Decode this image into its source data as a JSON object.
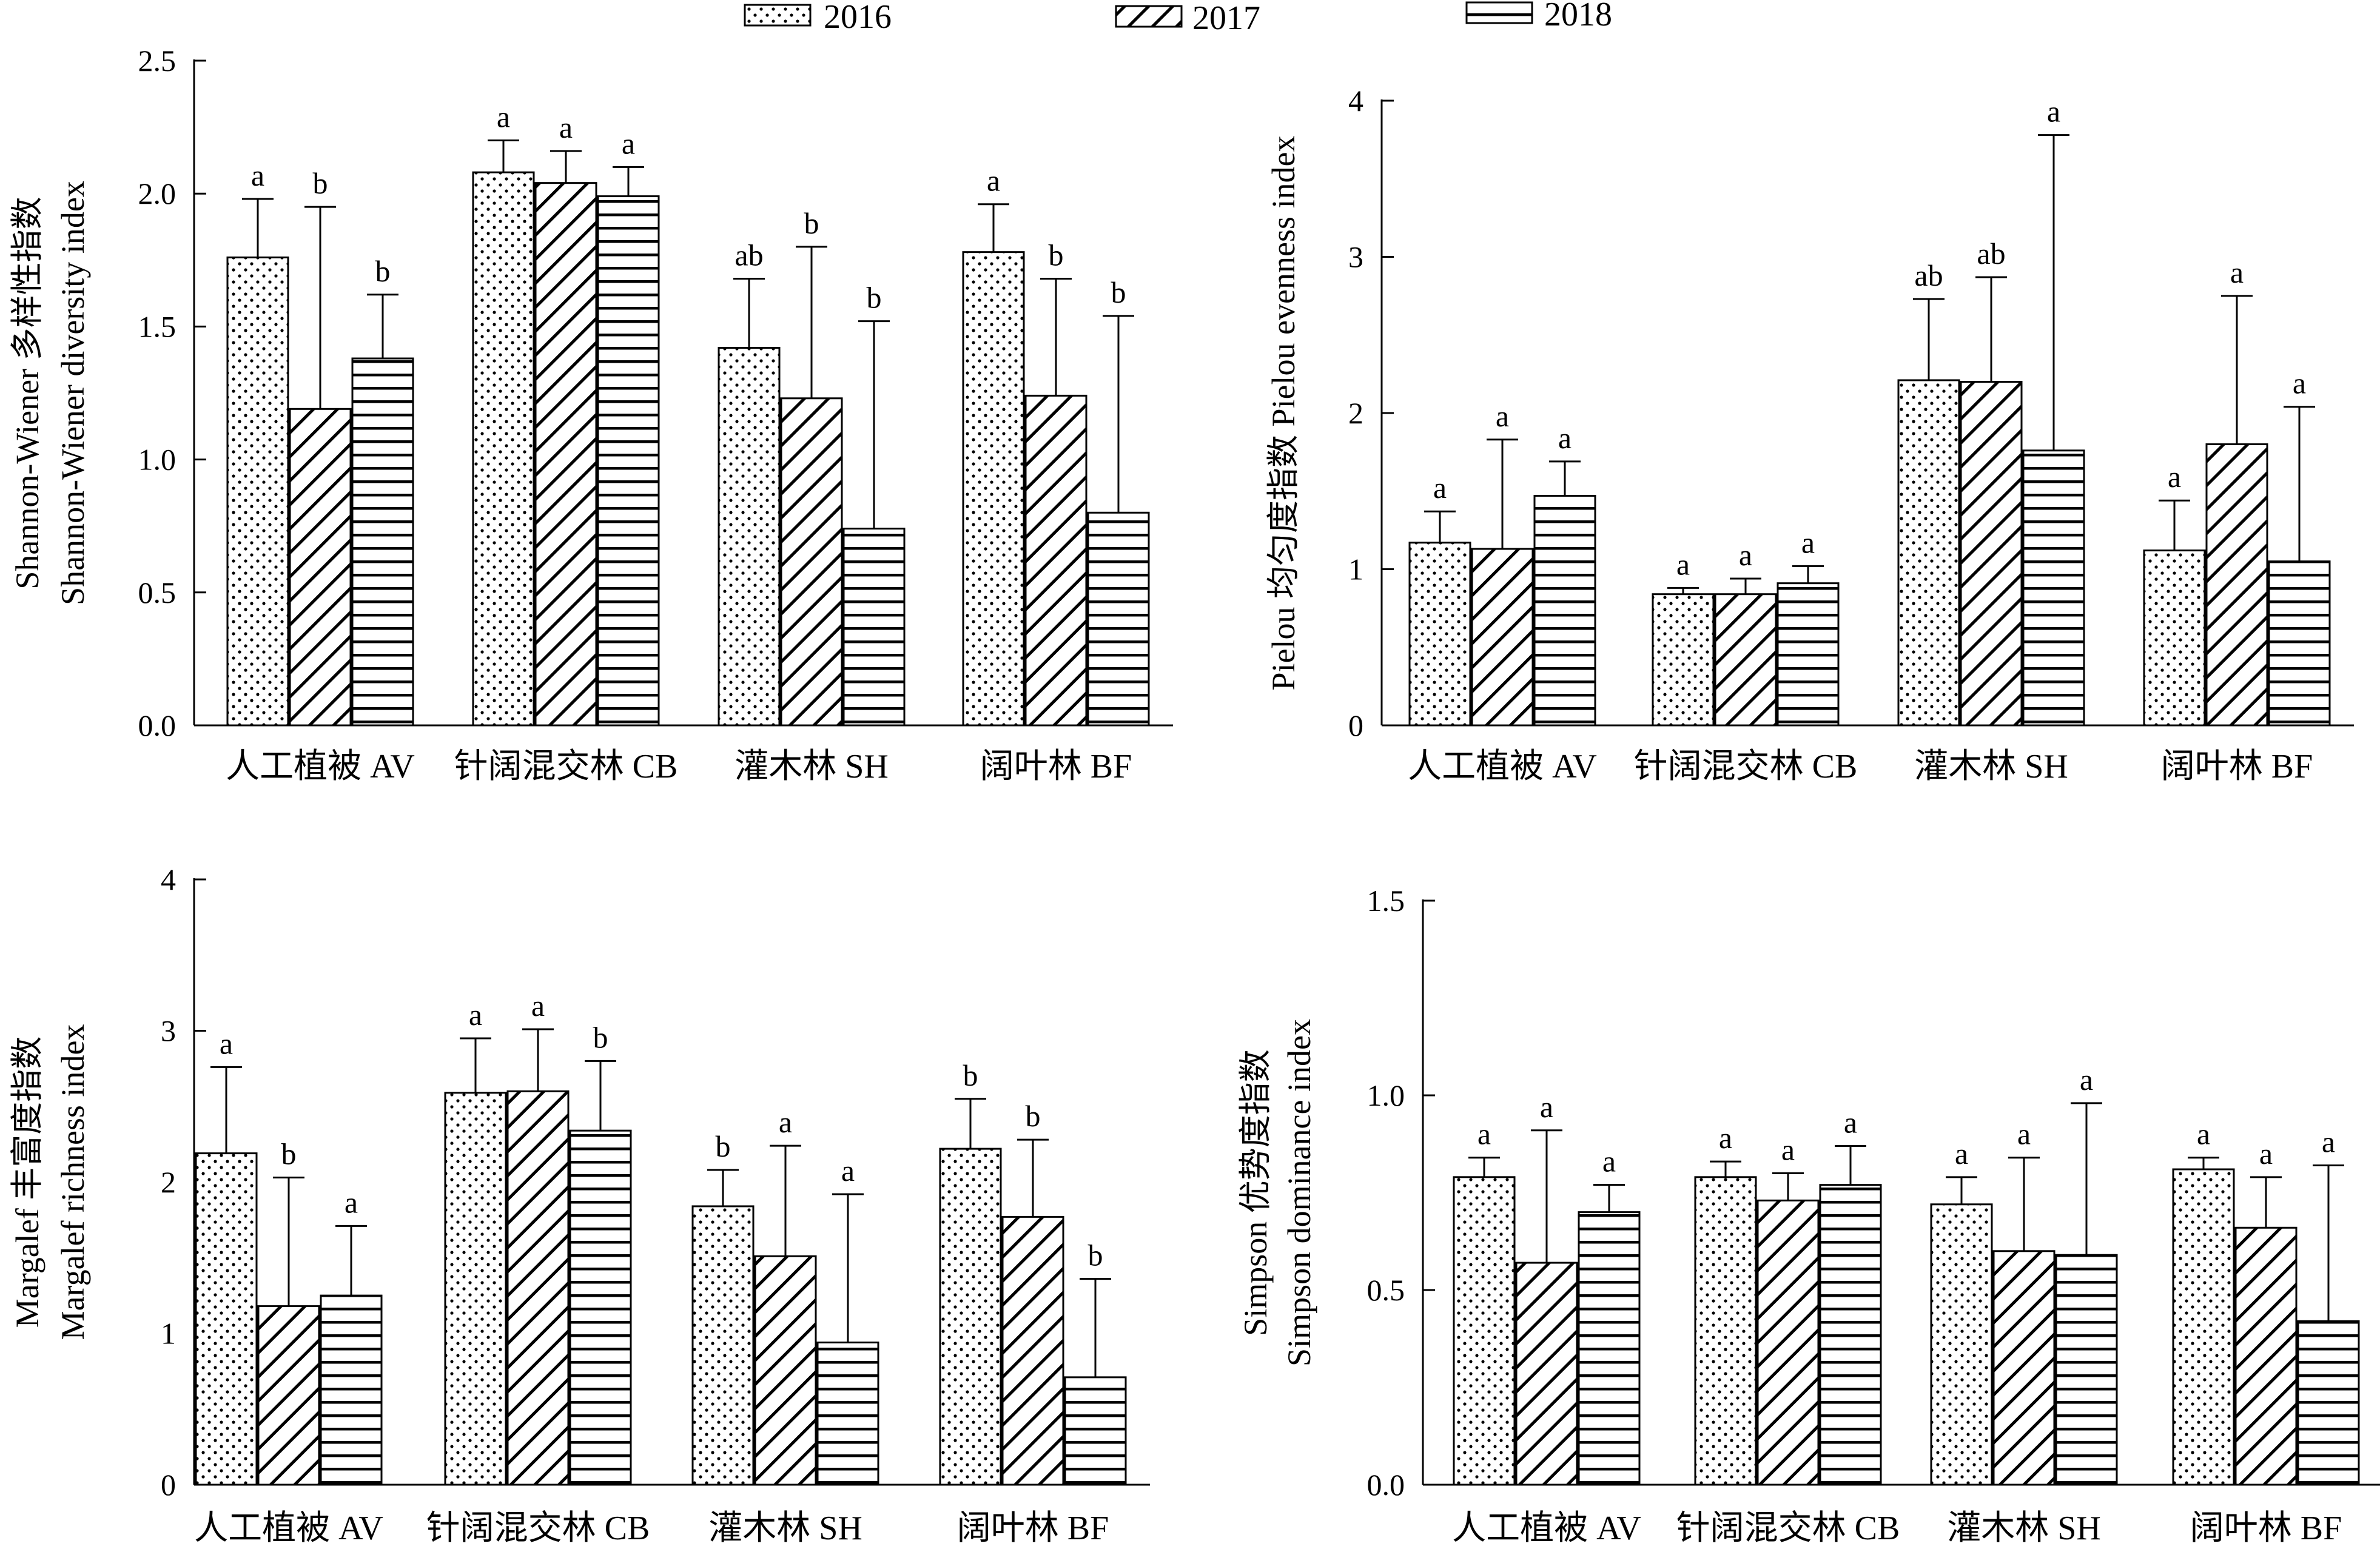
{
  "legend": [
    {
      "label": "2016",
      "pattern": "dots"
    },
    {
      "label": "2017",
      "pattern": "diagonal"
    },
    {
      "label": "2018",
      "pattern": "horizontal"
    }
  ],
  "chart_data": [
    {
      "type": "bar",
      "ylabel": [
        "Shannon-Wiener 多样性指数",
        "Shannon-Wiener diversity index"
      ],
      "ylim": [
        0,
        2.5
      ],
      "yticks": [
        "0.0",
        "0.5",
        "1.0",
        "1.5",
        "2.0",
        "2.5"
      ],
      "categories": [
        "人工植被 AV",
        "针阔混交林 CB",
        "灌木林 SH",
        "阔叶林 BF"
      ],
      "series": [
        {
          "name": "2016",
          "values": [
            1.76,
            2.08,
            1.42,
            1.78
          ],
          "errors": [
            0.22,
            0.12,
            0.26,
            0.18
          ],
          "letters": [
            "a",
            "a",
            "ab",
            "a"
          ]
        },
        {
          "name": "2017",
          "values": [
            1.19,
            2.04,
            1.23,
            1.24
          ],
          "errors": [
            0.76,
            0.12,
            0.57,
            0.44
          ],
          "letters": [
            "b",
            "a",
            "b",
            "b"
          ]
        },
        {
          "name": "2018",
          "values": [
            1.38,
            1.99,
            0.74,
            0.8
          ],
          "errors": [
            0.24,
            0.11,
            0.78,
            0.74
          ],
          "letters": [
            "b",
            "a",
            "b",
            "b"
          ]
        }
      ]
    },
    {
      "type": "bar",
      "ylabel": [
        "Pielou 均匀度指数 Pielou evenness index"
      ],
      "ylim": [
        0,
        4
      ],
      "yticks": [
        "0",
        "1",
        "2",
        "3",
        "4"
      ],
      "categories": [
        "人工植被 AV",
        "针阔混交林 CB",
        "灌木林 SH",
        "阔叶林 BF"
      ],
      "series": [
        {
          "name": "2016",
          "values": [
            1.17,
            0.84,
            2.21,
            1.12
          ],
          "errors": [
            0.2,
            0.04,
            0.52,
            0.32
          ],
          "letters": [
            "a",
            "a",
            "ab",
            "a"
          ]
        },
        {
          "name": "2017",
          "values": [
            1.13,
            0.84,
            2.2,
            1.8
          ],
          "errors": [
            0.7,
            0.1,
            0.67,
            0.95
          ],
          "letters": [
            "a",
            "a",
            "ab",
            "a"
          ]
        },
        {
          "name": "2018",
          "values": [
            1.47,
            0.91,
            1.76,
            1.05
          ],
          "errors": [
            0.22,
            0.11,
            2.02,
            0.99
          ],
          "letters": [
            "a",
            "a",
            "a",
            "a"
          ]
        }
      ]
    },
    {
      "type": "bar",
      "ylabel": [
        "Margalef 丰富度指数",
        "Margalef richness index"
      ],
      "ylim": [
        0,
        4
      ],
      "yticks": [
        "0",
        "1",
        "2",
        "3",
        "4"
      ],
      "categories": [
        "人工植被 AV",
        "针阔混交林 CB",
        "灌木林 SH",
        "阔叶林 BF"
      ],
      "series": [
        {
          "name": "2016",
          "values": [
            2.19,
            2.59,
            1.84,
            2.22
          ],
          "errors": [
            0.57,
            0.36,
            0.24,
            0.33
          ],
          "letters": [
            "a",
            "a",
            "b",
            "b"
          ]
        },
        {
          "name": "2017",
          "values": [
            1.18,
            2.6,
            1.51,
            1.77
          ],
          "errors": [
            0.85,
            0.41,
            0.73,
            0.51
          ],
          "letters": [
            "b",
            "a",
            "a",
            "b"
          ]
        },
        {
          "name": "2018",
          "values": [
            1.25,
            2.34,
            0.94,
            0.71
          ],
          "errors": [
            0.46,
            0.46,
            0.98,
            0.65
          ],
          "letters": [
            "a",
            "b",
            "a",
            "b"
          ]
        }
      ]
    },
    {
      "type": "bar",
      "ylabel": [
        "Simpson 优势度指数",
        "Simpson dominance index"
      ],
      "ylim": [
        0,
        1.5
      ],
      "yticks": [
        "0.0",
        "0.5",
        "1.0",
        "1.5"
      ],
      "categories": [
        "人工植被 AV",
        "针阔混交林 CB",
        "灌木林 SH",
        "阔叶林 BF"
      ],
      "series": [
        {
          "name": "2016",
          "values": [
            0.79,
            0.79,
            0.72,
            0.81
          ],
          "errors": [
            0.05,
            0.04,
            0.07,
            0.03
          ],
          "letters": [
            "a",
            "a",
            "a",
            "a"
          ]
        },
        {
          "name": "2017",
          "values": [
            0.57,
            0.73,
            0.6,
            0.66
          ],
          "errors": [
            0.34,
            0.07,
            0.24,
            0.13
          ],
          "letters": [
            "a",
            "a",
            "a",
            "a"
          ]
        },
        {
          "name": "2018",
          "values": [
            0.7,
            0.77,
            0.59,
            0.42
          ],
          "errors": [
            0.07,
            0.1,
            0.39,
            0.4
          ],
          "letters": [
            "a",
            "a",
            "a",
            "a"
          ]
        }
      ]
    }
  ]
}
